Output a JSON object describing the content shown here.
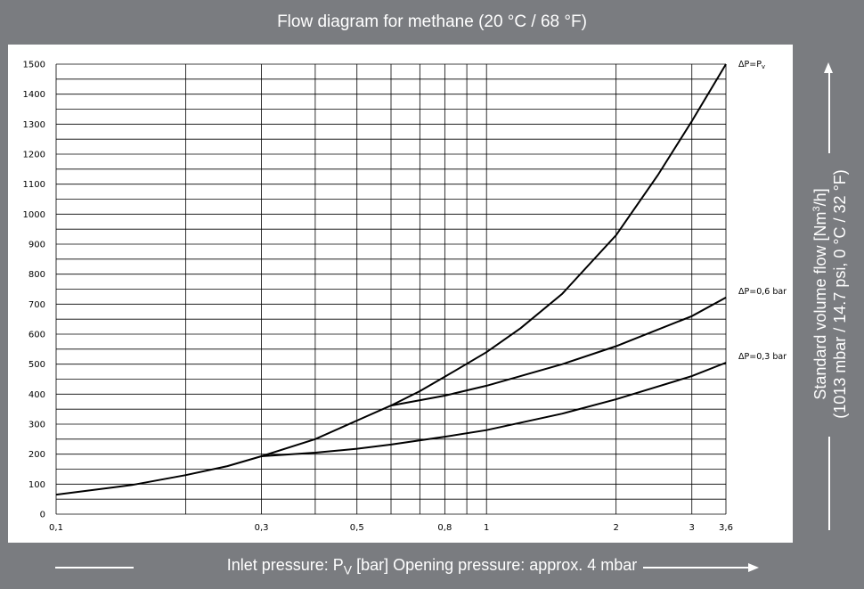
{
  "header": {
    "title": "Flow diagram for methane (20 °C / 68 °F)"
  },
  "xaxis_title": {
    "prefix": "Inlet pressure: P",
    "sub": "V",
    "suffix": " [bar] Opening pressure: approx. 4 mbar"
  },
  "yaxis_title": {
    "line1_prefix": "Standard volume flow [Nm",
    "line1_sup": "3",
    "line1_suffix": "/h]",
    "line2": "(1013 mbar / 14.7 psi, 0 °C / 32 °F)"
  },
  "colors": {
    "frame": "#7a7c80",
    "plot_bg": "#ffffff",
    "grid": "#000000",
    "curve": "#000000"
  },
  "chart_data": {
    "type": "line",
    "title": "Flow diagram for methane (20 °C / 68 °F)",
    "xscale": "log",
    "xlim": [
      0.1,
      3.6
    ],
    "ylim": [
      0,
      1500
    ],
    "grid": true,
    "x_tick_labels": [
      {
        "v": 0.1,
        "label": "0,1"
      },
      {
        "v": 0.3,
        "label": "0,3"
      },
      {
        "v": 0.5,
        "label": "0,5"
      },
      {
        "v": 0.8,
        "label": "0,8"
      },
      {
        "v": 1,
        "label": "1"
      },
      {
        "v": 2,
        "label": "2"
      },
      {
        "v": 3,
        "label": "3"
      },
      {
        "v": 3.6,
        "label": "3,6"
      }
    ],
    "x_gridlines": [
      0.1,
      0.2,
      0.3,
      0.4,
      0.5,
      0.6,
      0.7,
      0.8,
      0.9,
      1,
      2,
      3,
      3.6
    ],
    "y_ticks": [
      0,
      100,
      200,
      300,
      400,
      500,
      600,
      700,
      800,
      900,
      1000,
      1100,
      1200,
      1300,
      1400,
      1500
    ],
    "y_minor_step": 50,
    "series": [
      {
        "name": "ΔP=P",
        "name_sub": "v",
        "points": [
          [
            0.1,
            65
          ],
          [
            0.15,
            97
          ],
          [
            0.2,
            130
          ],
          [
            0.25,
            160
          ],
          [
            0.3,
            193
          ],
          [
            0.4,
            250
          ],
          [
            0.5,
            312
          ],
          [
            0.6,
            362
          ],
          [
            0.7,
            410
          ],
          [
            0.8,
            458
          ],
          [
            1.0,
            540
          ],
          [
            1.2,
            620
          ],
          [
            1.5,
            735
          ],
          [
            2.0,
            930
          ],
          [
            2.5,
            1130
          ],
          [
            3.0,
            1310
          ],
          [
            3.6,
            1500
          ]
        ]
      },
      {
        "name": "ΔP=0,6 bar",
        "points": [
          [
            0.6,
            362
          ],
          [
            0.8,
            395
          ],
          [
            1.0,
            428
          ],
          [
            1.5,
            500
          ],
          [
            2.0,
            560
          ],
          [
            3.0,
            660
          ],
          [
            3.6,
            722
          ]
        ]
      },
      {
        "name": "ΔP=0,3 bar",
        "points": [
          [
            0.3,
            193
          ],
          [
            0.4,
            205
          ],
          [
            0.5,
            218
          ],
          [
            0.6,
            232
          ],
          [
            0.8,
            258
          ],
          [
            1.0,
            280
          ],
          [
            1.5,
            335
          ],
          [
            2.0,
            383
          ],
          [
            3.0,
            460
          ],
          [
            3.6,
            505
          ]
        ]
      }
    ]
  }
}
